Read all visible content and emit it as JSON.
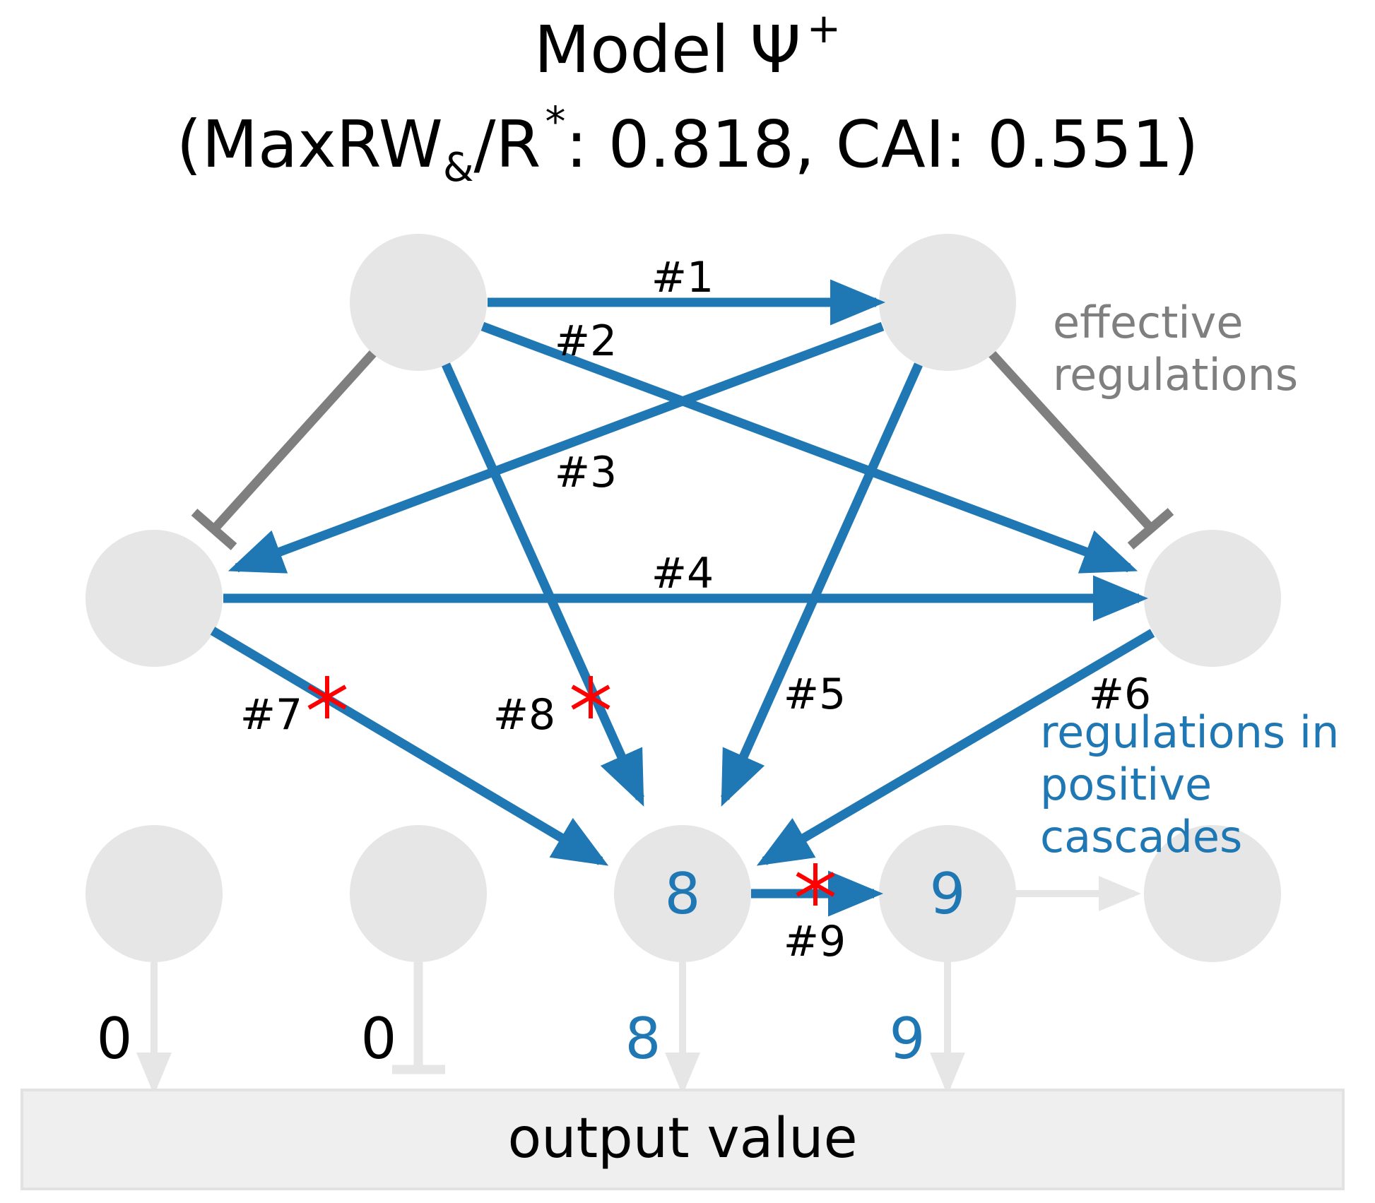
{
  "title": {
    "line1": "Model Ψ",
    "line1_sup": "+",
    "line2_prefix": "(MaxRW",
    "line2_sub": "&",
    "line2_mid": "/R",
    "line2_sup": "*",
    "line2_suffix": ": 0.818, CAI: 0.551)"
  },
  "colors": {
    "blue": "#1f77b4",
    "gray": "#7f7f7f",
    "light": "#e6e6e6",
    "red": "#ff0000",
    "box": "#efefef"
  },
  "edge_labels": [
    "#1",
    "#2",
    "#3",
    "#4",
    "#5",
    "#6",
    "#7",
    "#8",
    "#9"
  ],
  "node_labels": {
    "n8": "8",
    "n9": "9"
  },
  "legend": {
    "effective_line1": "effective",
    "effective_line2": "regulations",
    "positive_line1": "regulations in",
    "positive_line2": "positive",
    "positive_line3": "cascades"
  },
  "outputs": {
    "o1": "0",
    "o2": "0",
    "o3": "8",
    "o4": "9"
  },
  "output_box": "output value",
  "mutation_marker": "*"
}
